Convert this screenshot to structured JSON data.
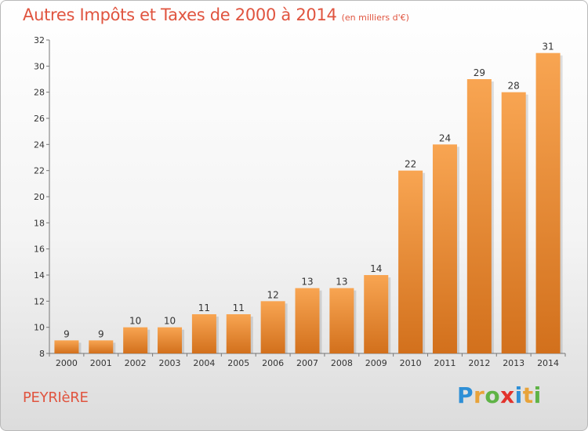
{
  "header": {
    "title": "Autres Impôts et Taxes de 2000 à 2014",
    "unit": "(en milliers d'€)"
  },
  "footer": {
    "commune": "PEYRIèRE",
    "logo_letters": [
      {
        "char": "P",
        "color": "#2e8fd6"
      },
      {
        "char": "r",
        "color": "#e8a33a"
      },
      {
        "char": "o",
        "color": "#5fb346"
      },
      {
        "char": "x",
        "color": "#e2332c"
      },
      {
        "char": "i",
        "color": "#2e8fd6"
      },
      {
        "char": "t",
        "color": "#e8a33a"
      },
      {
        "char": "i",
        "color": "#5fb346"
      }
    ]
  },
  "colors": {
    "bar_light": "#f8a552",
    "bar_dark": "#d2701c",
    "axis": "#777777",
    "text": "#333333"
  },
  "chart_data": {
    "type": "bar",
    "title": "Autres Impôts et Taxes de 2000 à 2014",
    "subtitle": "(en milliers d'€)",
    "xlabel": "",
    "ylabel": "",
    "categories": [
      "2000",
      "2001",
      "2002",
      "2003",
      "2004",
      "2005",
      "2006",
      "2007",
      "2008",
      "2009",
      "2010",
      "2011",
      "2012",
      "2013",
      "2014"
    ],
    "values": [
      9,
      9,
      10,
      10,
      11,
      11,
      12,
      13,
      13,
      14,
      22,
      24,
      29,
      28,
      31
    ],
    "ylim": [
      8,
      32
    ],
    "yticks": [
      8,
      10,
      12,
      14,
      16,
      18,
      20,
      22,
      24,
      26,
      28,
      30,
      32
    ],
    "grid": false,
    "legend": "none"
  }
}
